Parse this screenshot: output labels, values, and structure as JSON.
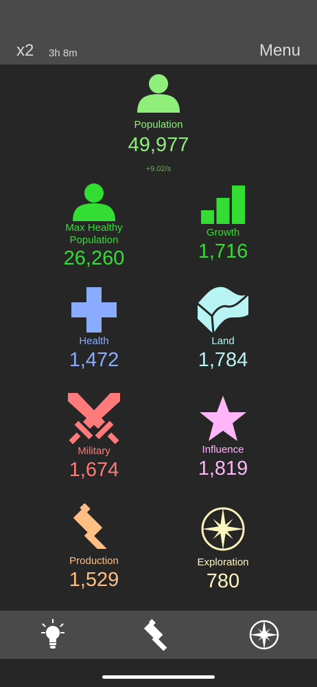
{
  "header": {
    "speed": "x2",
    "timer": "3h 8m",
    "menu_label": "Menu"
  },
  "population": {
    "label": "Population",
    "value": "49,977",
    "rate": "+9.02/s",
    "color": "#90ee7a"
  },
  "stats": {
    "max_healthy": {
      "label_line1": "Max Healthy",
      "label_line2": "Population",
      "value": "26,260",
      "color": "#33dd33",
      "icon": "person-icon"
    },
    "growth": {
      "label": "Growth",
      "value": "1,716",
      "color": "#33dd33",
      "icon": "bar-chart-icon"
    },
    "health": {
      "label": "Health",
      "value": "1,472",
      "color": "#8aabff",
      "icon": "plus-cross-icon"
    },
    "land": {
      "label": "Land",
      "value": "1,784",
      "color": "#b8f4f4",
      "icon": "terrain-icon"
    },
    "military": {
      "label": "Military",
      "value": "1,674",
      "color": "#ff7a7a",
      "icon": "crossed-swords-icon"
    },
    "influence": {
      "label": "Influence",
      "value": "1,819",
      "color": "#ffb6f8",
      "icon": "star-icon"
    },
    "production": {
      "label": "Production",
      "value": "1,529",
      "color": "#ffbe84",
      "icon": "hammer-icon"
    },
    "exploration": {
      "label": "Exploration",
      "value": "780",
      "color": "#fff6bf",
      "icon": "compass-icon"
    }
  },
  "nav": {
    "items": [
      "lightbulb-icon",
      "hammer-icon",
      "compass-icon"
    ]
  }
}
